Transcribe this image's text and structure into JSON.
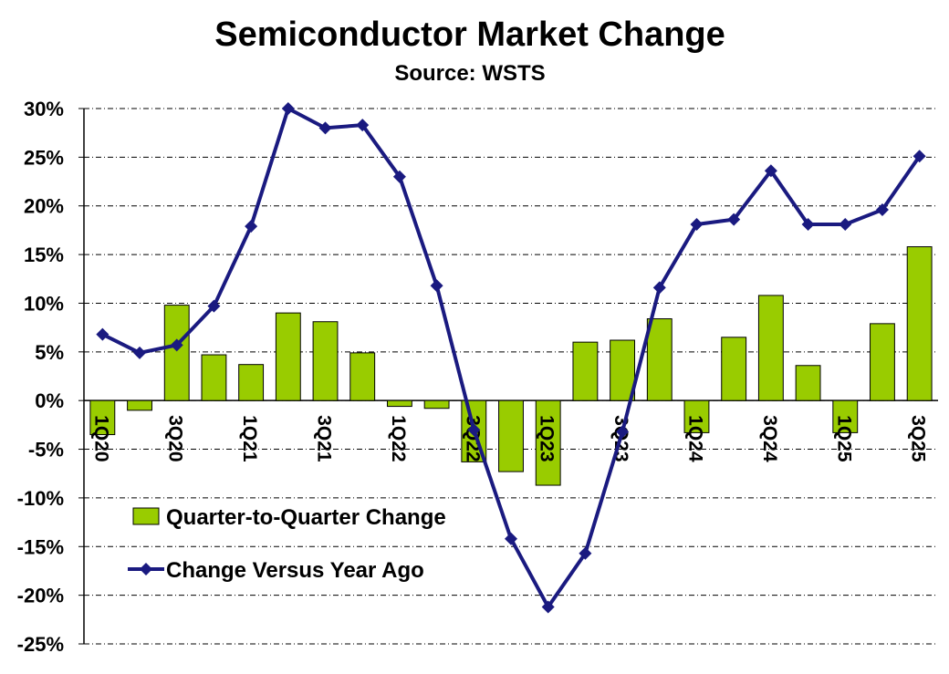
{
  "chart_data": {
    "type": "bar-line",
    "title": "Semiconductor Market Change",
    "subtitle": "Source: WSTS",
    "categories": [
      "1Q20",
      null,
      "3Q20",
      null,
      "1Q21",
      null,
      "3Q21",
      null,
      "1Q22",
      null,
      "3Q22",
      null,
      "1Q23",
      null,
      "3Q23",
      null,
      "1Q24",
      null,
      "3Q24",
      null,
      "1Q25",
      null,
      "3Q25"
    ],
    "series": [
      {
        "name": "Quarter-to-Quarter Change",
        "type": "bar",
        "color": "#99cc00",
        "values": [
          -3.5,
          -1.0,
          9.8,
          4.7,
          3.7,
          9.0,
          8.1,
          4.9,
          -0.6,
          -0.8,
          -6.3,
          -7.3,
          -8.7,
          6.0,
          6.2,
          8.4,
          -3.3,
          6.5,
          10.8,
          3.6,
          -3.3,
          7.9,
          15.8
        ]
      },
      {
        "name": "Change Versus Year Ago",
        "type": "line",
        "color": "#1a1a80",
        "values": [
          6.8,
          4.9,
          5.7,
          9.7,
          17.9,
          30.0,
          28.0,
          28.3,
          23.0,
          11.8,
          -3.0,
          -14.2,
          -21.2,
          -15.7,
          -3.2,
          11.6,
          18.1,
          18.6,
          23.6,
          18.1,
          18.1,
          19.6,
          25.1
        ]
      }
    ],
    "ylim": [
      -25,
      30
    ],
    "yticks": [
      {
        "value": -25,
        "label": "-25%"
      },
      {
        "value": -20,
        "label": "-20%"
      },
      {
        "value": -15,
        "label": "-15%"
      },
      {
        "value": -10,
        "label": "-10%"
      },
      {
        "value": -5,
        "label": "-5%"
      },
      {
        "value": 0,
        "label": "0%"
      },
      {
        "value": 5,
        "label": "5%"
      },
      {
        "value": 10,
        "label": "10%"
      },
      {
        "value": 15,
        "label": "15%"
      },
      {
        "value": 20,
        "label": "20%"
      },
      {
        "value": 25,
        "label": "25%"
      },
      {
        "value": 30,
        "label": "30%"
      }
    ],
    "grid": true,
    "legend": "lower left"
  }
}
